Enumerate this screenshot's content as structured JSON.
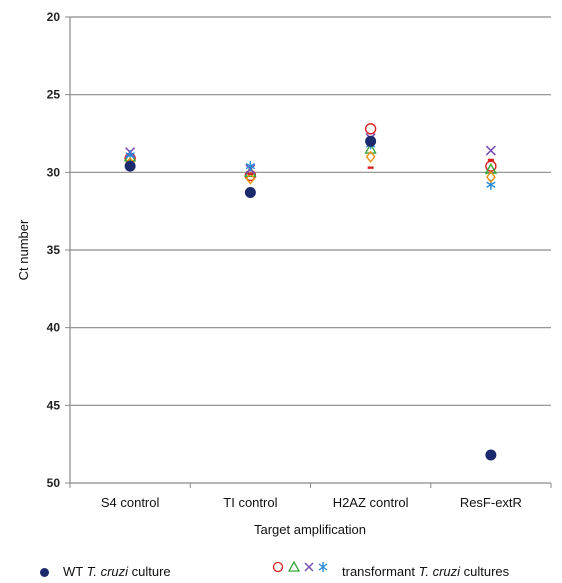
{
  "chart_data": {
    "type": "scatter",
    "categories": [
      "S4 control",
      "TI control",
      "H2AZ control",
      "ResF-extR"
    ],
    "xlabel": "Target amplification",
    "ylabel": "Ct number",
    "ylim": [
      20,
      50
    ],
    "y_inverted": true,
    "yticks": [
      20,
      25,
      30,
      35,
      40,
      45,
      50
    ],
    "grid": true,
    "series": [
      {
        "marker": "filled-circle",
        "color": "#1a2a6c",
        "values": [
          29.6,
          31.3,
          28.0,
          48.2
        ]
      },
      {
        "marker": "open-circle",
        "color": "#d62020",
        "values": [
          29.1,
          30.2,
          27.2,
          29.6
        ]
      },
      {
        "marker": "open-triangle",
        "color": "#3aa63a",
        "values": [
          29.0,
          30.0,
          28.5,
          29.8
        ]
      },
      {
        "marker": "cross",
        "color": "#7a4fb5",
        "values": [
          28.7,
          29.8,
          27.8,
          28.6
        ]
      },
      {
        "marker": "asterisk",
        "color": "#2a8ad6",
        "values": [
          28.9,
          29.6,
          28.2,
          30.8
        ]
      },
      {
        "marker": "open-diamond",
        "color": "#e8920c",
        "values": [
          29.4,
          30.4,
          29.0,
          30.3
        ]
      },
      {
        "marker": "dash",
        "color": "#d62020",
        "values": [
          29.7,
          30.1,
          29.7,
          29.2
        ]
      }
    ],
    "legend": {
      "placement": "bottom",
      "wt": {
        "prefix": "WT ",
        "italic": "T. cruzi",
        "suffix": " culture"
      },
      "transformant": {
        "prefix": "transformant ",
        "italic": "T. cruzi",
        "suffix": " cultures"
      }
    }
  }
}
